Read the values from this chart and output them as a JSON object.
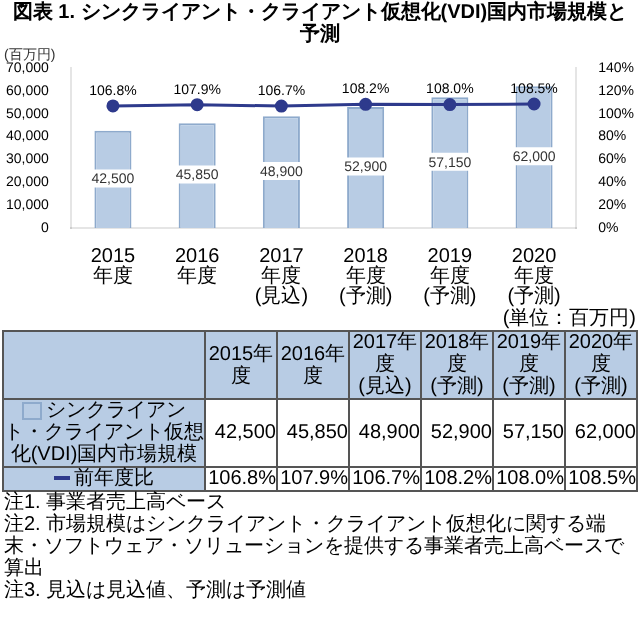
{
  "chart_data": {
    "type": "bar",
    "title": "図表 1. シンクライアント・クライアント仮想化(VDI)国内市場規模と予測",
    "ylabel": "(百万円)",
    "categories": [
      "2015年度",
      "2016年度",
      "2017年度\n(見込)",
      "2018年度\n(予測)",
      "2019年度\n(予測)",
      "2020年度\n(予測)"
    ],
    "series": [
      {
        "name": "シンクライアント・クライアント仮想化(VDI)国内市場規模",
        "type": "bar",
        "color": "#b8cce4",
        "values": [
          42500,
          45850,
          48900,
          52900,
          57150,
          62000
        ],
        "value_labels": [
          "42,500",
          "45,850",
          "48,900",
          "52,900",
          "57,150",
          "62,000"
        ]
      },
      {
        "name": "前年度比",
        "type": "line",
        "axis": "y2",
        "color": "#2e3a8c",
        "marker": "circle",
        "values": [
          106.8,
          107.9,
          106.7,
          108.2,
          108.0,
          108.5
        ],
        "value_labels": [
          "106.8%",
          "107.9%",
          "106.7%",
          "108.2%",
          "108.0%",
          "108.5%"
        ]
      }
    ],
    "ylim": [
      0,
      70000
    ],
    "yticks": [
      {
        "value": 0,
        "label": "0"
      },
      {
        "value": 10000,
        "label": "10,000"
      },
      {
        "value": 20000,
        "label": "20,000"
      },
      {
        "value": 30000,
        "label": "30,000"
      },
      {
        "value": 40000,
        "label": "40,000"
      },
      {
        "value": 50000,
        "label": "50,000"
      },
      {
        "value": 60000,
        "label": "60,000"
      },
      {
        "value": 70000,
        "label": "70,000"
      }
    ],
    "y2lim": [
      0,
      140
    ],
    "y2ticks": [
      {
        "value": 0,
        "label": "0%"
      },
      {
        "value": 20,
        "label": "20%"
      },
      {
        "value": 40,
        "label": "40%"
      },
      {
        "value": 60,
        "label": "60%"
      },
      {
        "value": 80,
        "label": "80%"
      },
      {
        "value": 100,
        "label": "100%"
      },
      {
        "value": 120,
        "label": "120%"
      },
      {
        "value": 140,
        "label": "140%"
      }
    ],
    "legend": "bottom",
    "annotations": [
      "(単位：百万円)",
      "注1. 事業者売上高ベース",
      "注2. 市場規模はシンクライアント・クライアント仮想化に関する端末・ソフトウェア・ソリューションを提供する事業者売上高ベースで算出",
      "注3. 見込は見込値、予測は予測値"
    ]
  }
}
